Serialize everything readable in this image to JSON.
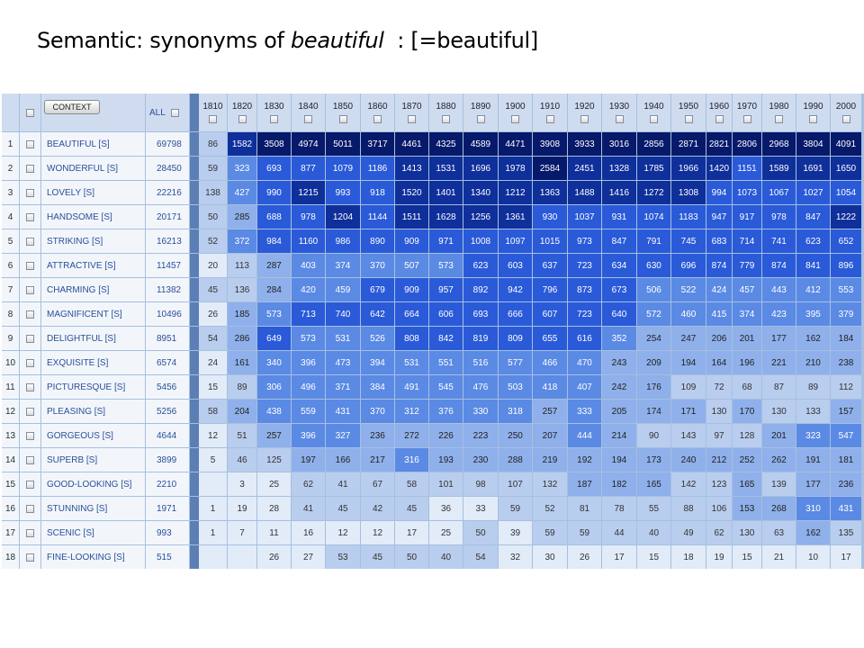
{
  "slide_title": {
    "prefix": "Semantic: synonyms of ",
    "italic": "beautiful",
    "suffix": "  : [=beautiful]"
  },
  "table": {
    "context_button": "CONTEXT",
    "all_label": "ALL",
    "decades": [
      "1810",
      "1820",
      "1830",
      "1840",
      "1850",
      "1860",
      "1870",
      "1880",
      "1890",
      "1900",
      "1910",
      "1920",
      "1930",
      "1940",
      "1950",
      "1960",
      "1970",
      "1980",
      "1990",
      "2000"
    ],
    "rows": [
      {
        "n": "1",
        "word": "BEAUTIFUL [S]",
        "all": "69798",
        "v": [
          "86",
          "1582",
          "3508",
          "4974",
          "5011",
          "3717",
          "4461",
          "4325",
          "4589",
          "4471",
          "3908",
          "3933",
          "3016",
          "2856",
          "2871",
          "2821",
          "2806",
          "2968",
          "3804",
          "4091"
        ]
      },
      {
        "n": "2",
        "word": "WONDERFUL [S]",
        "all": "28450",
        "v": [
          "59",
          "323",
          "693",
          "877",
          "1079",
          "1186",
          "1413",
          "1531",
          "1696",
          "1978",
          "2584",
          "2451",
          "1328",
          "1785",
          "1966",
          "1420",
          "1151",
          "1589",
          "1691",
          "1650"
        ]
      },
      {
        "n": "3",
        "word": "LOVELY [S]",
        "all": "22216",
        "v": [
          "138",
          "427",
          "990",
          "1215",
          "993",
          "918",
          "1520",
          "1401",
          "1340",
          "1212",
          "1363",
          "1488",
          "1416",
          "1272",
          "1308",
          "994",
          "1073",
          "1067",
          "1027",
          "1054"
        ]
      },
      {
        "n": "4",
        "word": "HANDSOME [S]",
        "all": "20171",
        "v": [
          "50",
          "285",
          "688",
          "978",
          "1204",
          "1144",
          "1511",
          "1628",
          "1256",
          "1361",
          "930",
          "1037",
          "931",
          "1074",
          "1183",
          "947",
          "917",
          "978",
          "847",
          "1222"
        ]
      },
      {
        "n": "5",
        "word": "STRIKING [S]",
        "all": "16213",
        "v": [
          "52",
          "372",
          "984",
          "1160",
          "986",
          "890",
          "909",
          "971",
          "1008",
          "1097",
          "1015",
          "973",
          "847",
          "791",
          "745",
          "683",
          "714",
          "741",
          "623",
          "652"
        ]
      },
      {
        "n": "6",
        "word": "ATTRACTIVE [S]",
        "all": "11457",
        "v": [
          "20",
          "113",
          "287",
          "403",
          "374",
          "370",
          "507",
          "573",
          "623",
          "603",
          "637",
          "723",
          "634",
          "630",
          "696",
          "874",
          "779",
          "874",
          "841",
          "896"
        ]
      },
      {
        "n": "7",
        "word": "CHARMING [S]",
        "all": "11382",
        "v": [
          "45",
          "136",
          "284",
          "420",
          "459",
          "679",
          "909",
          "957",
          "892",
          "942",
          "796",
          "873",
          "673",
          "506",
          "522",
          "424",
          "457",
          "443",
          "412",
          "553"
        ]
      },
      {
        "n": "8",
        "word": "MAGNIFICENT [S]",
        "all": "10496",
        "v": [
          "26",
          "185",
          "573",
          "713",
          "740",
          "642",
          "664",
          "606",
          "693",
          "666",
          "607",
          "723",
          "640",
          "572",
          "460",
          "415",
          "374",
          "423",
          "395",
          "379"
        ]
      },
      {
        "n": "9",
        "word": "DELIGHTFUL [S]",
        "all": "8951",
        "v": [
          "54",
          "286",
          "649",
          "573",
          "531",
          "526",
          "808",
          "842",
          "819",
          "809",
          "655",
          "616",
          "352",
          "254",
          "247",
          "206",
          "201",
          "177",
          "162",
          "184"
        ]
      },
      {
        "n": "10",
        "word": "EXQUISITE [S]",
        "all": "6574",
        "v": [
          "24",
          "161",
          "340",
          "396",
          "473",
          "394",
          "531",
          "551",
          "516",
          "577",
          "466",
          "470",
          "243",
          "209",
          "194",
          "164",
          "196",
          "221",
          "210",
          "238"
        ]
      },
      {
        "n": "11",
        "word": "PICTURESQUE [S]",
        "all": "5456",
        "v": [
          "15",
          "89",
          "306",
          "496",
          "371",
          "384",
          "491",
          "545",
          "476",
          "503",
          "418",
          "407",
          "242",
          "176",
          "109",
          "72",
          "68",
          "87",
          "89",
          "112"
        ]
      },
      {
        "n": "12",
        "word": "PLEASING [S]",
        "all": "5256",
        "v": [
          "58",
          "204",
          "438",
          "559",
          "431",
          "370",
          "312",
          "376",
          "330",
          "318",
          "257",
          "333",
          "205",
          "174",
          "171",
          "130",
          "170",
          "130",
          "133",
          "157"
        ]
      },
      {
        "n": "13",
        "word": "GORGEOUS [S]",
        "all": "4644",
        "v": [
          "12",
          "51",
          "257",
          "396",
          "327",
          "236",
          "272",
          "226",
          "223",
          "250",
          "207",
          "444",
          "214",
          "90",
          "143",
          "97",
          "128",
          "201",
          "323",
          "547"
        ]
      },
      {
        "n": "14",
        "word": "SUPERB [S]",
        "all": "3899",
        "v": [
          "5",
          "46",
          "125",
          "197",
          "166",
          "217",
          "316",
          "193",
          "230",
          "288",
          "219",
          "192",
          "194",
          "173",
          "240",
          "212",
          "252",
          "262",
          "191",
          "181"
        ]
      },
      {
        "n": "15",
        "word": "GOOD-LOOKING [S]",
        "all": "2210",
        "v": [
          "",
          "3",
          "25",
          "62",
          "41",
          "67",
          "58",
          "101",
          "98",
          "107",
          "132",
          "187",
          "182",
          "165",
          "142",
          "123",
          "165",
          "139",
          "177",
          "236"
        ]
      },
      {
        "n": "16",
        "word": "STUNNING [S]",
        "all": "1971",
        "v": [
          "1",
          "19",
          "28",
          "41",
          "45",
          "42",
          "45",
          "36",
          "33",
          "59",
          "52",
          "81",
          "78",
          "55",
          "88",
          "106",
          "153",
          "268",
          "310",
          "431"
        ]
      },
      {
        "n": "17",
        "word": "SCENIC [S]",
        "all": "993",
        "v": [
          "1",
          "7",
          "11",
          "16",
          "12",
          "12",
          "17",
          "25",
          "50",
          "39",
          "59",
          "59",
          "44",
          "40",
          "49",
          "62",
          "130",
          "63",
          "162",
          "135"
        ]
      },
      {
        "n": "18",
        "word": "FINE-LOOKING [S]",
        "all": "515",
        "v": [
          "",
          "",
          "26",
          "27",
          "53",
          "45",
          "50",
          "40",
          "54",
          "32",
          "30",
          "26",
          "17",
          "15",
          "18",
          "19",
          "15",
          "21",
          "10",
          "17"
        ]
      }
    ]
  },
  "colors": {
    "level1": "#e2ebf8",
    "level2": "#b9cdee",
    "level3": "#8fb0ea",
    "level4": "#5b8ae4",
    "level5": "#2a5ad8",
    "level6": "#0f2f9a",
    "level7": "#07196a"
  }
}
